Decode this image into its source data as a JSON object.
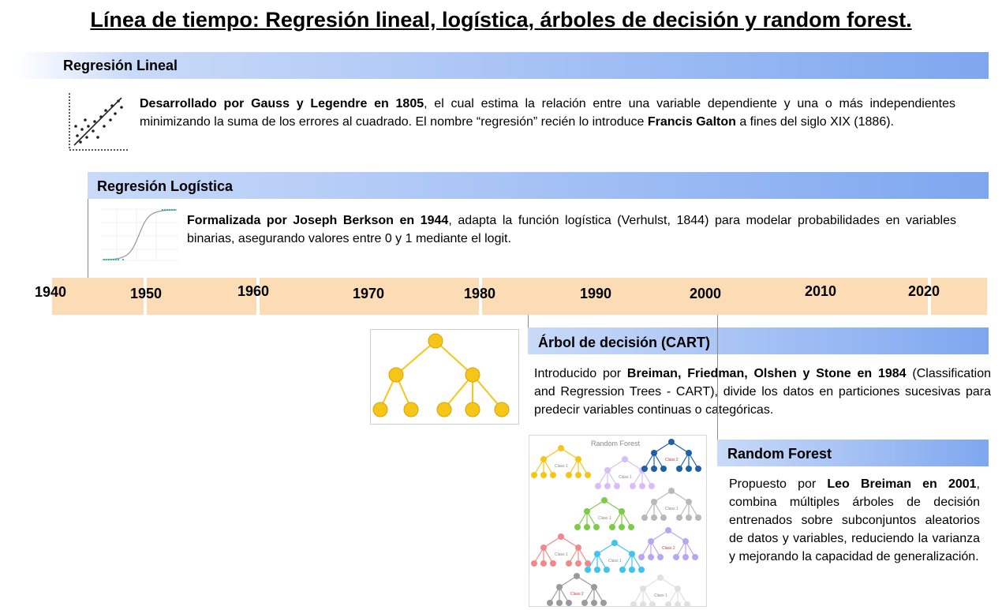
{
  "title": "Línea de tiempo: Regresión lineal, logística, árboles de decisión y random forest.",
  "timeline": {
    "years": [
      "1940",
      "1950",
      "1960",
      "1970",
      "1980",
      "1990",
      "2000",
      "2010",
      "2020"
    ]
  },
  "sections": {
    "linear": {
      "heading": "Regresión Lineal",
      "b1": "Desarrollado por Gauss y Legendre en 1805",
      "t1": ", el cual estima la relación entre una variable dependiente y una o más independientes minimizando la suma de los errores al cuadrado. El nombre “regresión” recién lo introduce ",
      "b2": "Francis Galton",
      "t2": " a fines del siglo XIX (1886)."
    },
    "logistic": {
      "heading": "Regresión Logística",
      "b1": "Formalizada por Joseph Berkson en 1944",
      "t1": ", adapta la función logística (Verhulst, 1844) para modelar probabilidades en variables binarias, asegurando valores entre 0 y 1 mediante el logit."
    },
    "cart": {
      "heading": "Árbol de decisión (CART)",
      "t0": "Introducido por ",
      "b1": "Breiman, Friedman, Olshen y Stone en 1984",
      "t1": " (Classification and Regression Trees - CART), divide los datos en particiones sucesivas para predecir variables continuas o categóricas."
    },
    "rf": {
      "heading": "Random Forest",
      "t0": "Propuesto por ",
      "b1": "Leo Breiman en 2001",
      "t1": ", combina múltiples árboles de decisión entrenados sobre subconjuntos aleatorios de datos y variables, reduciendo la varianza y mejorando la capacidad de generalización."
    }
  },
  "rf_image": {
    "title": "Random Forest",
    "class1": "Class 1",
    "class2": "Class 2"
  },
  "colors": {
    "band_light": "#c9daf8",
    "band_dark": "#7ea7ef",
    "axis": "#fbdcb5",
    "tree_yellow": "#f5c518"
  }
}
